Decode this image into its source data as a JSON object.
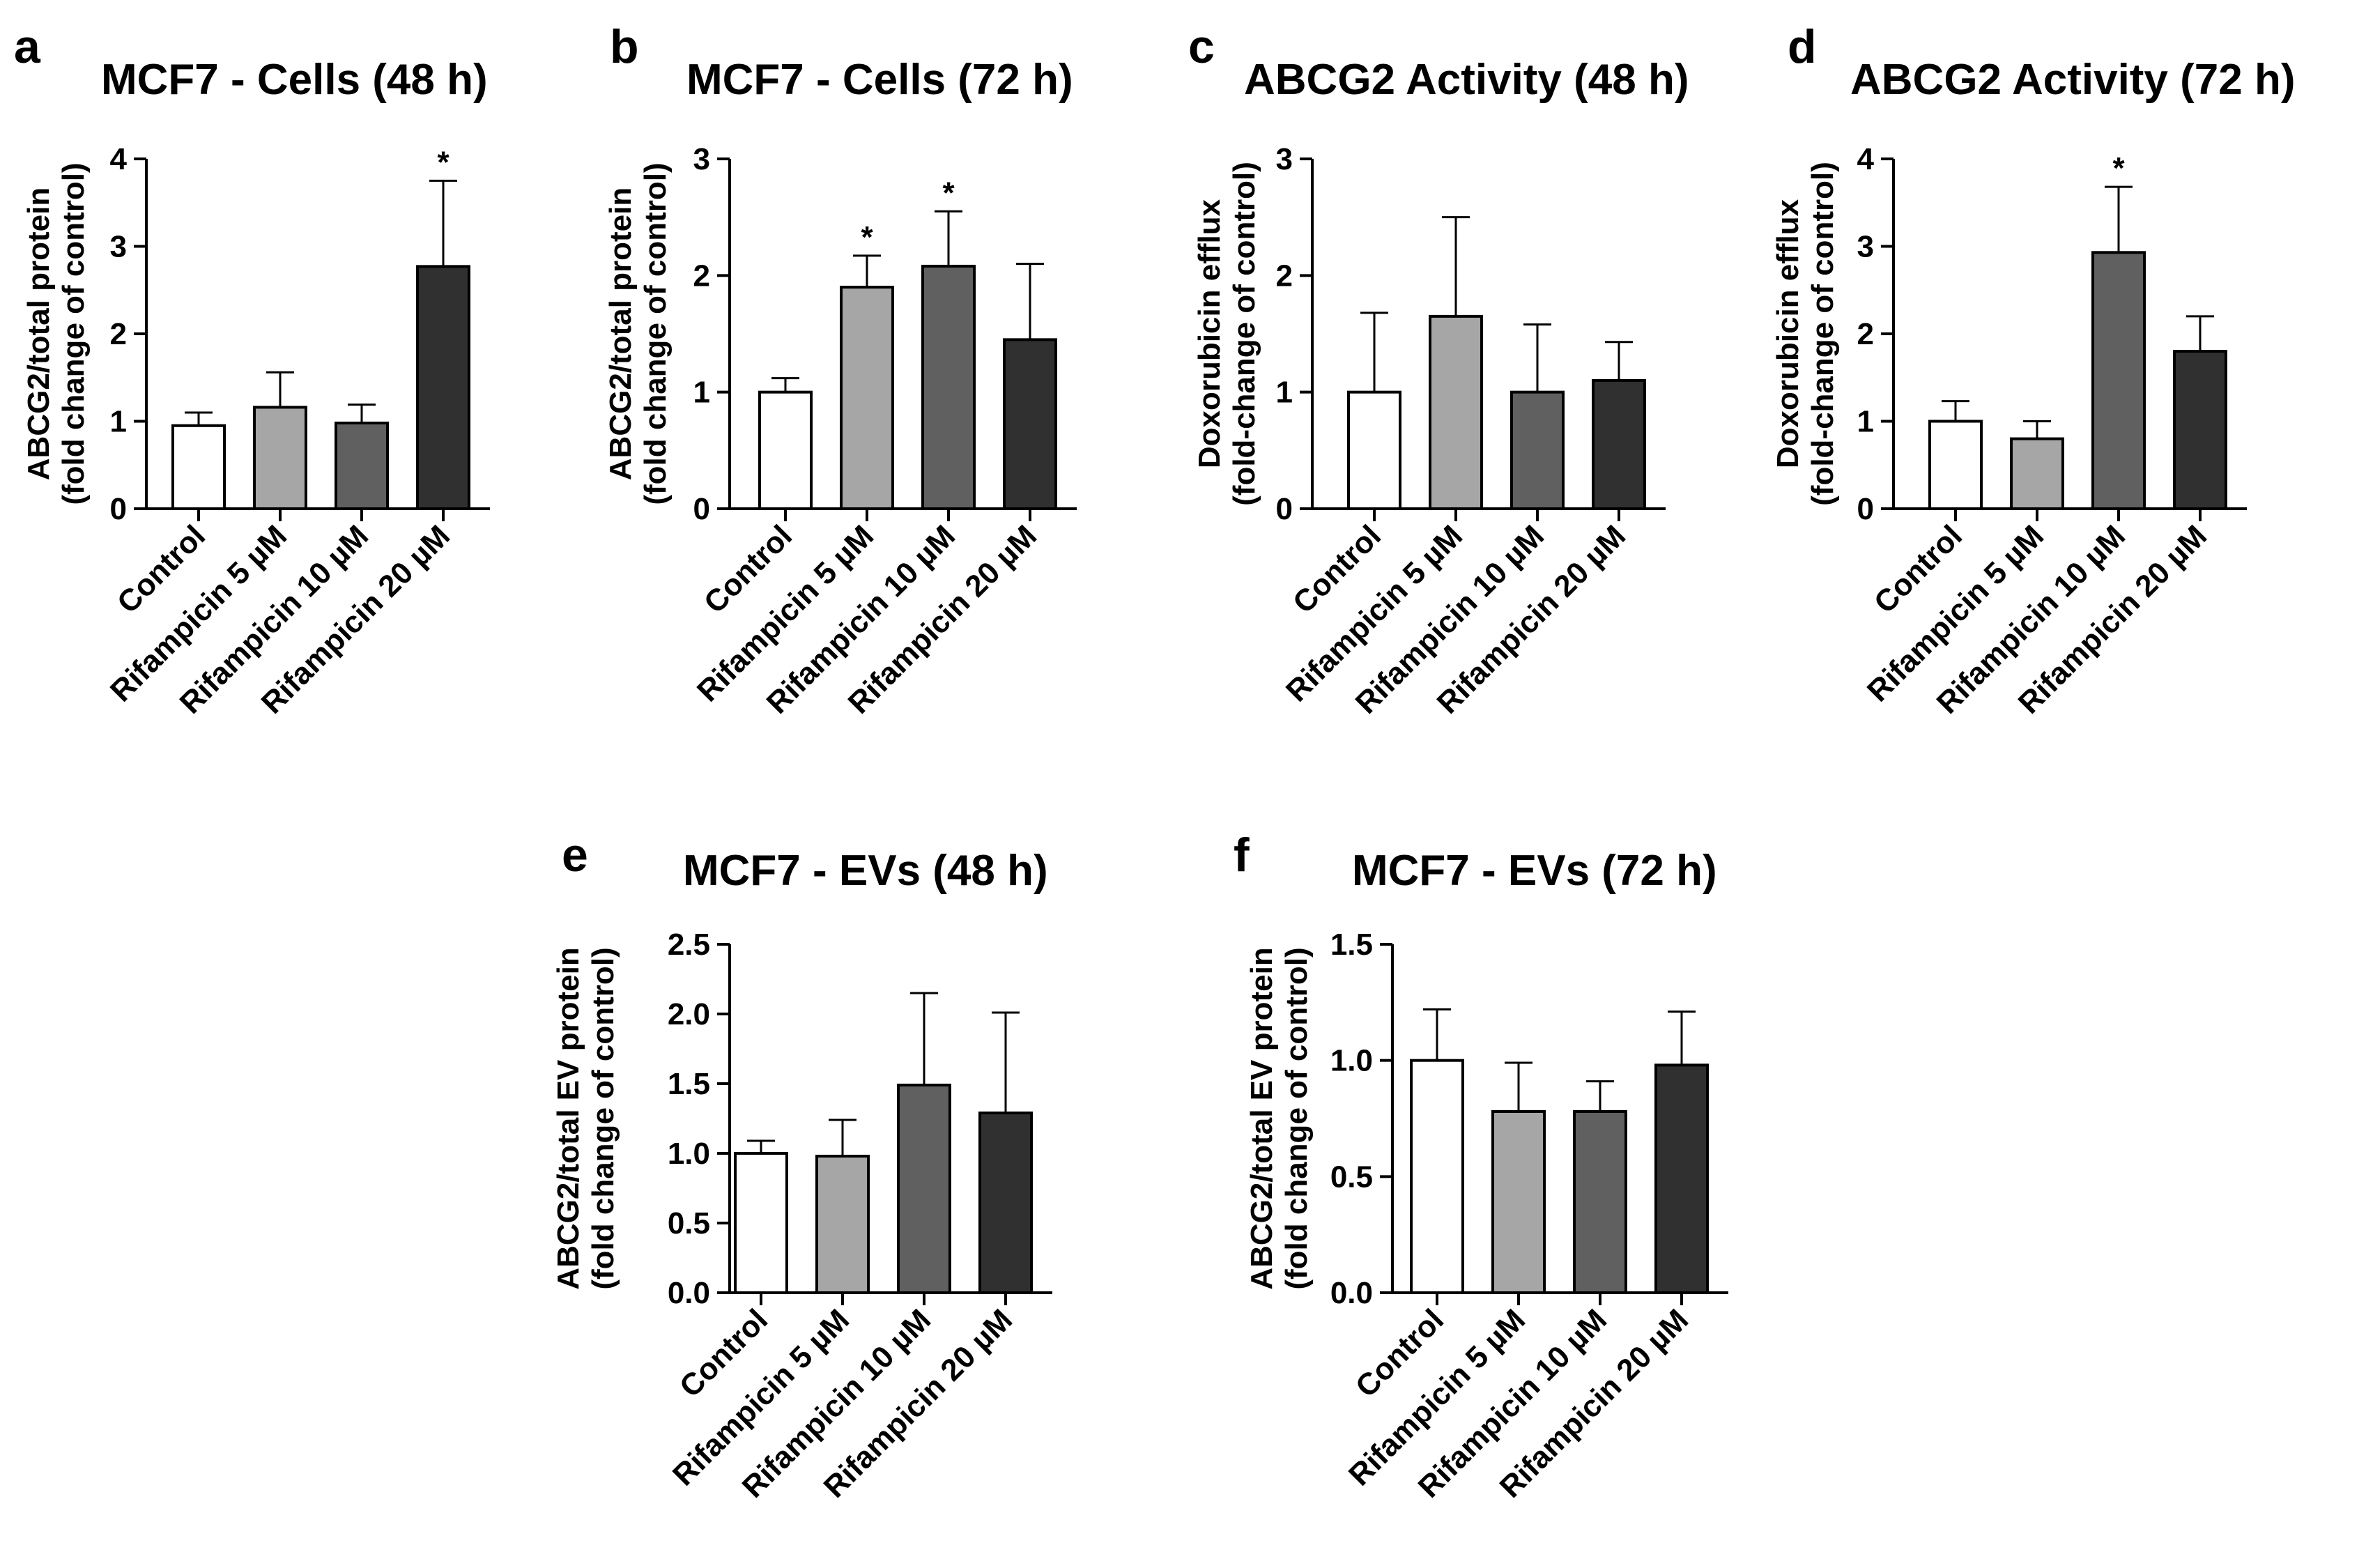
{
  "colors": {
    "fills": [
      "#ffffff",
      "#a6a6a6",
      "#606060",
      "#303030"
    ],
    "stroke": "#000000"
  },
  "chart_data": [
    {
      "id": "a",
      "panel_label": "a",
      "title": "MCF7 - Cells (48 h)",
      "type": "bar",
      "ylabel": [
        "ABCG2/total protein",
        "(fold change of control)"
      ],
      "categories": [
        "Control",
        "Rifampicin 5 µM",
        "Rifampicin 10 µM",
        "Rifampicin 20 µM"
      ],
      "values": [
        0.95,
        1.16,
        0.98,
        2.77
      ],
      "error_upper": [
        1.1,
        1.56,
        1.19,
        3.75
      ],
      "significance": [
        "",
        "",
        "",
        "*"
      ],
      "ylim": [
        0,
        4
      ],
      "yticks": [
        0,
        1,
        2,
        3,
        4
      ],
      "ytick_labels": [
        "0",
        "1",
        "2",
        "3",
        "4"
      ]
    },
    {
      "id": "b",
      "panel_label": "b",
      "title": "MCF7 - Cells (72 h)",
      "type": "bar",
      "ylabel": [
        "ABCG2/total protein",
        "(fold change of control)"
      ],
      "categories": [
        "Control",
        "Rifampicin 5 µM",
        "Rifampicin 10 µM",
        "Rifampicin 20 µM"
      ],
      "values": [
        1.0,
        1.9,
        2.08,
        1.45
      ],
      "error_upper": [
        1.12,
        2.17,
        2.55,
        2.1
      ],
      "significance": [
        "",
        "*",
        "*",
        ""
      ],
      "ylim": [
        0,
        3
      ],
      "yticks": [
        0,
        1,
        2,
        3
      ],
      "ytick_labels": [
        "0",
        "1",
        "2",
        "3"
      ]
    },
    {
      "id": "c",
      "panel_label": "c",
      "title": "ABCG2 Activity (48 h)",
      "type": "bar",
      "ylabel": [
        "Doxorubicin efflux",
        "(fold-change of control)"
      ],
      "categories": [
        "Control",
        "Rifampicin 5 µM",
        "Rifampicin 10 µM",
        "Rifampicin 20 µM"
      ],
      "values": [
        1.0,
        1.65,
        1.0,
        1.1
      ],
      "error_upper": [
        1.68,
        2.5,
        1.58,
        1.43
      ],
      "significance": [
        "",
        "",
        "",
        ""
      ],
      "ylim": [
        0,
        3
      ],
      "yticks": [
        0,
        1,
        2,
        3
      ],
      "ytick_labels": [
        "0",
        "1",
        "2",
        "3"
      ]
    },
    {
      "id": "d",
      "panel_label": "d",
      "title": "ABCG2 Activity (72 h)",
      "type": "bar",
      "ylabel": [
        "Doxorubicin efflux",
        "(fold-change of control)"
      ],
      "categories": [
        "Control",
        "Rifampicin 5 µM",
        "Rifampicin 10 µM",
        "Rifampicin 20 µM"
      ],
      "values": [
        1.0,
        0.8,
        2.93,
        1.8
      ],
      "error_upper": [
        1.23,
        1.0,
        3.68,
        2.2
      ],
      "significance": [
        "",
        "",
        "*",
        ""
      ],
      "ylim": [
        0,
        4
      ],
      "yticks": [
        0,
        1,
        2,
        3,
        4
      ],
      "ytick_labels": [
        "0",
        "1",
        "2",
        "3",
        "4"
      ]
    },
    {
      "id": "e",
      "panel_label": "e",
      "title": "MCF7 - EVs (48 h)",
      "type": "bar",
      "ylabel": [
        "ABCG2/total EV protein",
        "(fold change of control)"
      ],
      "categories": [
        "Control",
        "Rifampicin 5 µM",
        "Rifampicin 10 µM",
        "Rifampicin 20 µM"
      ],
      "values": [
        1.0,
        0.98,
        1.49,
        1.29
      ],
      "error_upper": [
        1.09,
        1.24,
        2.15,
        2.01
      ],
      "significance": [
        "",
        "",
        "",
        ""
      ],
      "ylim": [
        0,
        2.5
      ],
      "yticks": [
        0,
        0.5,
        1.0,
        1.5,
        2.0,
        2.5
      ],
      "ytick_labels": [
        "0.0",
        "0.5",
        "1.0",
        "1.5",
        "2.0",
        "2.5"
      ]
    },
    {
      "id": "f",
      "panel_label": "f",
      "title": "MCF7 - EVs (72 h)",
      "type": "bar",
      "ylabel": [
        "ABCG2/total EV protein",
        "(fold change of control)"
      ],
      "categories": [
        "Control",
        "Rifampicin 5 µM",
        "Rifampicin 10 µM",
        "Rifampicin 20 µM"
      ],
      "values": [
        1.0,
        0.78,
        0.78,
        0.98
      ],
      "error_upper": [
        1.22,
        0.99,
        0.91,
        1.21
      ],
      "significance": [
        "",
        "",
        "",
        ""
      ],
      "ylim": [
        0,
        1.5
      ],
      "yticks": [
        0,
        0.5,
        1.0,
        1.5
      ],
      "ytick_labels": [
        "0.0",
        "0.5",
        "1.0",
        "1.5"
      ]
    }
  ]
}
